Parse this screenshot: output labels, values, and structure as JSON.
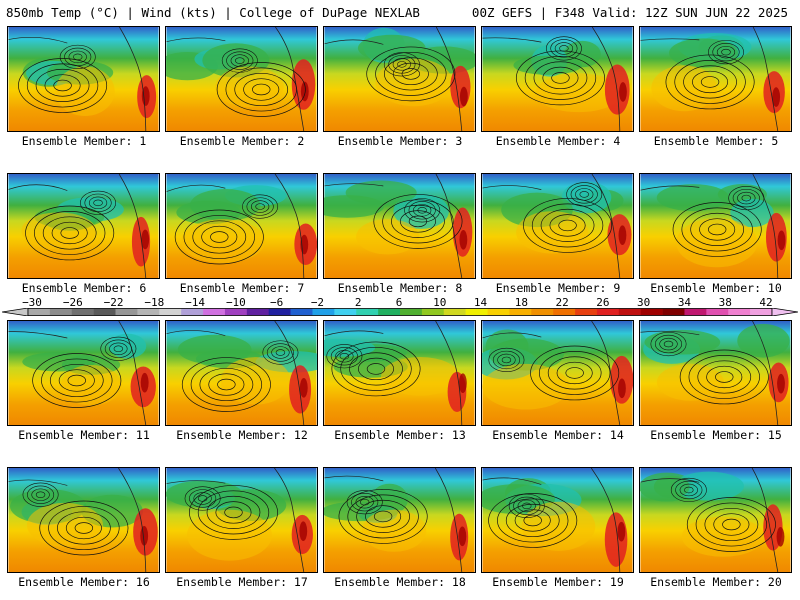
{
  "header": {
    "left": "850mb Temp (°C) | Wind (kts) | College of DuPage NEXLAB",
    "right": "00Z GEFS | F348 Valid: 12Z SUN JUN 22 2025"
  },
  "members": [
    {
      "label": "Ensemble Member: 1"
    },
    {
      "label": "Ensemble Member: 2"
    },
    {
      "label": "Ensemble Member: 3"
    },
    {
      "label": "Ensemble Member: 4"
    },
    {
      "label": "Ensemble Member: 5"
    },
    {
      "label": "Ensemble Member: 6"
    },
    {
      "label": "Ensemble Member: 7"
    },
    {
      "label": "Ensemble Member: 8"
    },
    {
      "label": "Ensemble Member: 9"
    },
    {
      "label": "Ensemble Member: 10"
    },
    {
      "label": "Ensemble Member: 11"
    },
    {
      "label": "Ensemble Member: 12"
    },
    {
      "label": "Ensemble Member: 13"
    },
    {
      "label": "Ensemble Member: 14"
    },
    {
      "label": "Ensemble Member: 15"
    },
    {
      "label": "Ensemble Member: 16"
    },
    {
      "label": "Ensemble Member: 17"
    },
    {
      "label": "Ensemble Member: 18"
    },
    {
      "label": "Ensemble Member: 19"
    },
    {
      "label": "Ensemble Member: 20"
    }
  ],
  "colorbar": {
    "labels": [
      "−30",
      "−26",
      "−22",
      "−18",
      "−14",
      "−10",
      "−6",
      "−2",
      "2",
      "6",
      "10",
      "14",
      "18",
      "22",
      "26",
      "30",
      "34",
      "38",
      "42"
    ],
    "colors": [
      "#a8a8a8",
      "#8c8c8c",
      "#707070",
      "#5a5a5a",
      "#969696",
      "#b4b4b4",
      "#d2d2d2",
      "#b0a0d8",
      "#d070e0",
      "#a040c0",
      "#6020a0",
      "#2020a0",
      "#2060d0",
      "#20a0e8",
      "#40d0f0",
      "#30d0b0",
      "#20b060",
      "#50b030",
      "#90c820",
      "#d0d820",
      "#f0f000",
      "#f8d000",
      "#f8b000",
      "#f09000",
      "#f07000",
      "#e84010",
      "#e02020",
      "#c01010",
      "#a00000",
      "#800000",
      "#c01870",
      "#e050b0",
      "#f080d0",
      "#f0a0e0"
    ]
  }
}
